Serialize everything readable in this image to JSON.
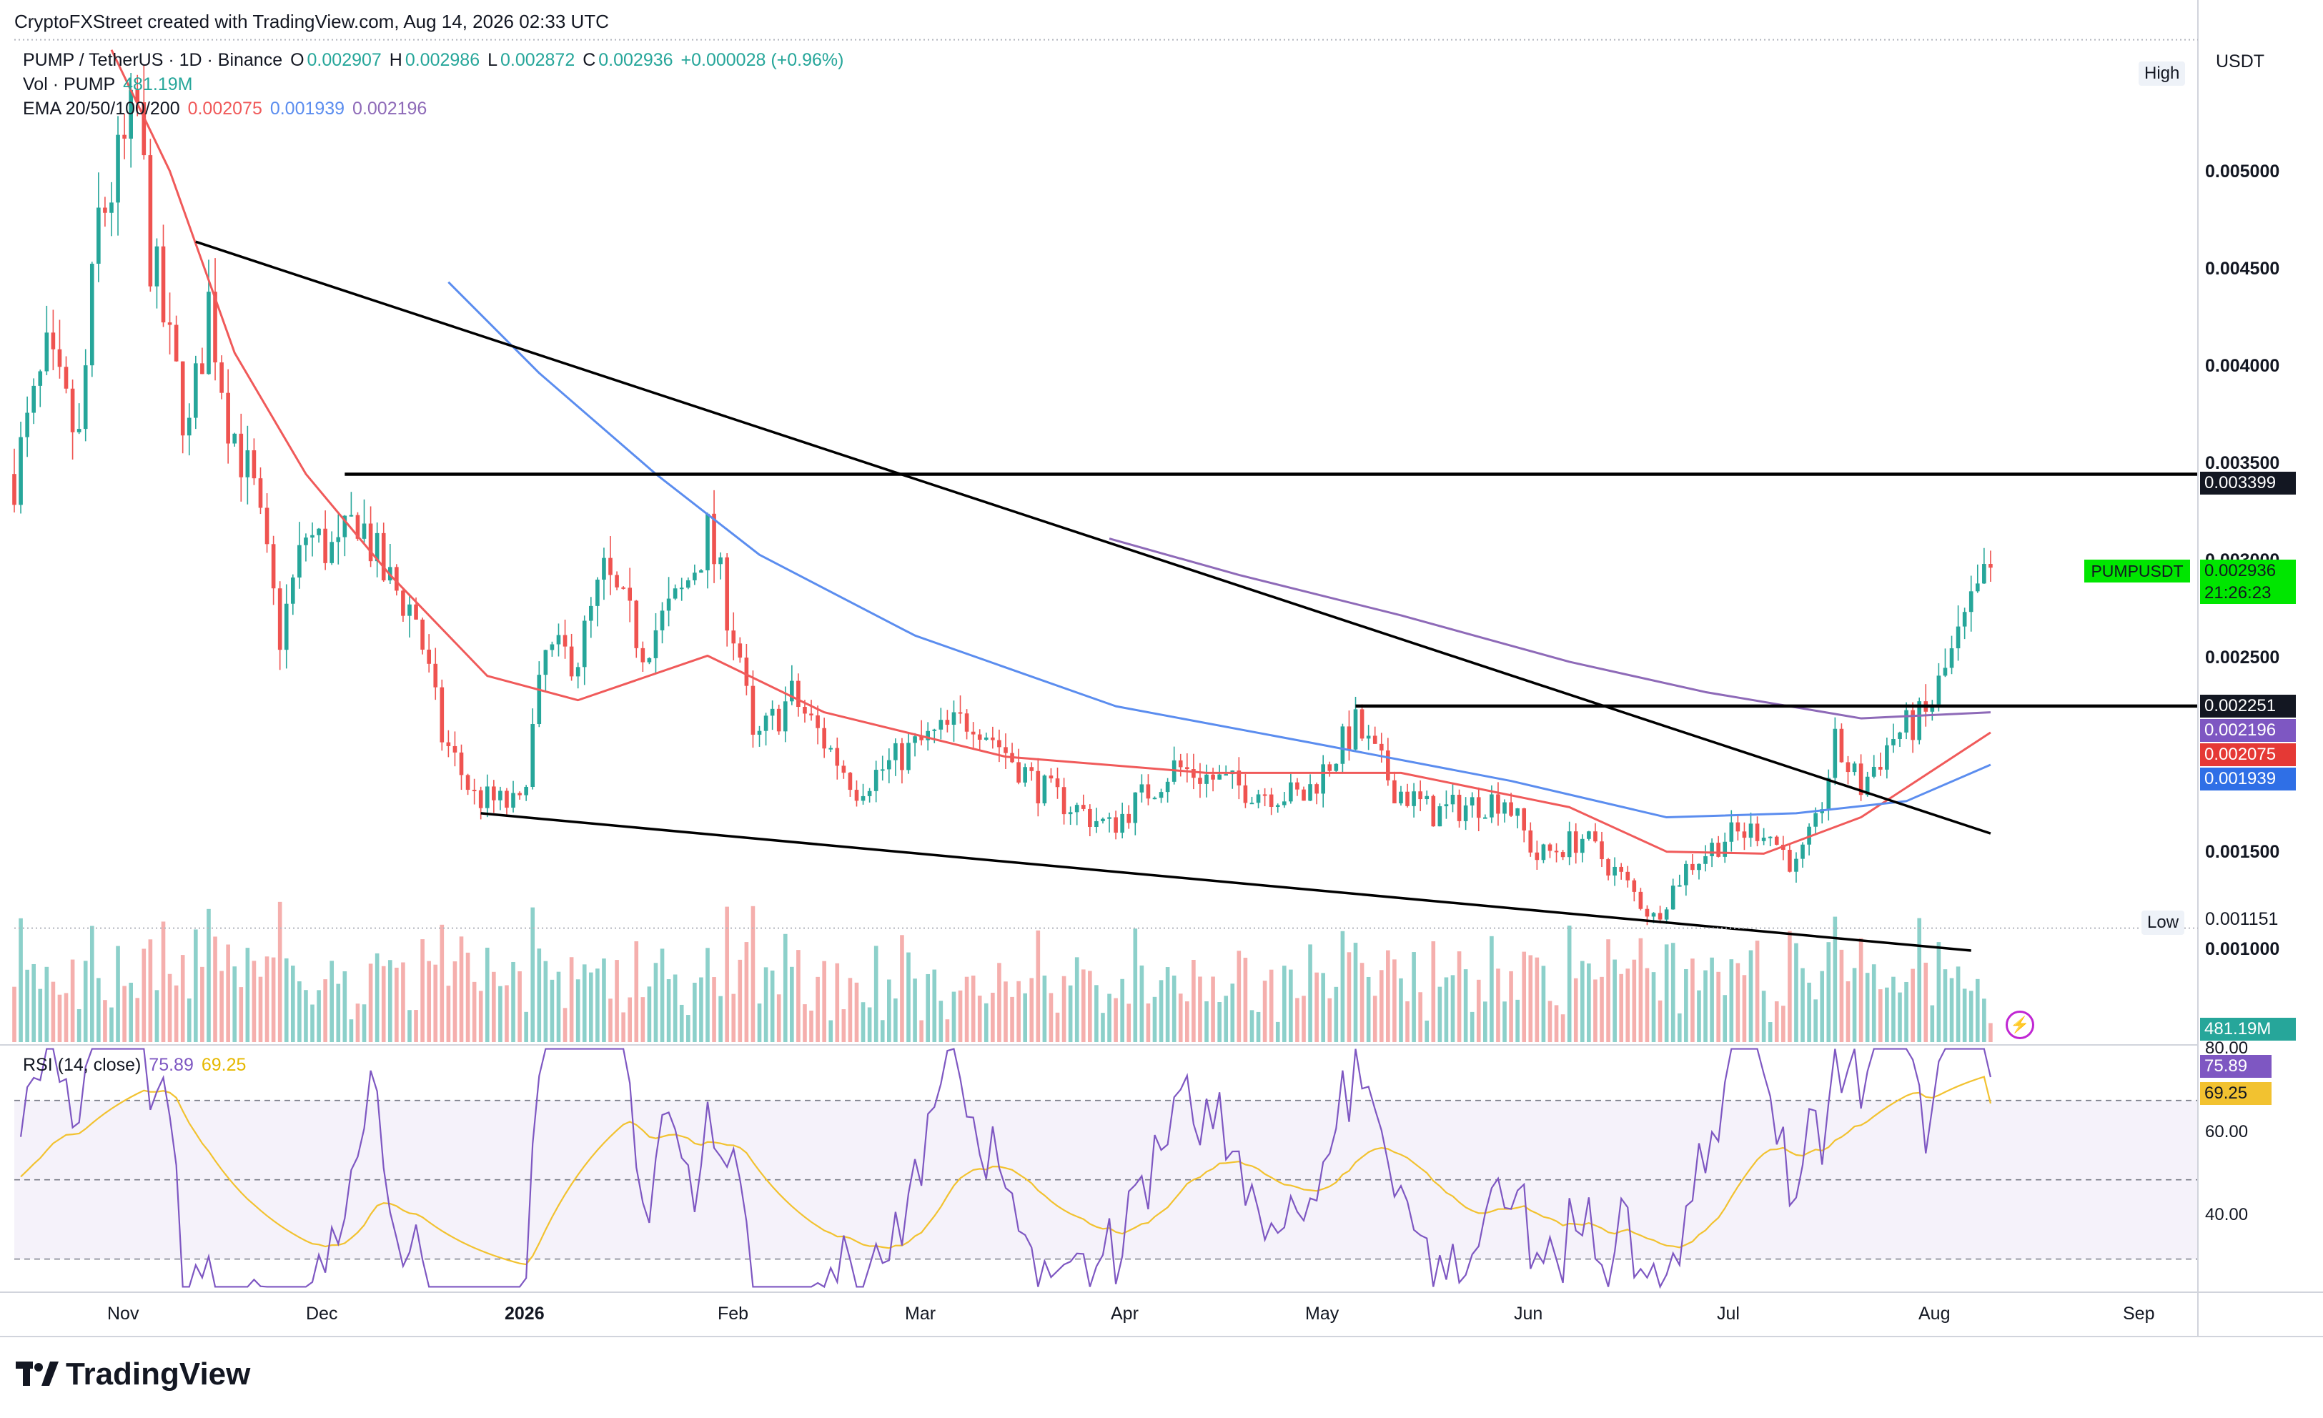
{
  "attribution": "CryptoFXStreet created with TradingView.com, Aug 14, 2026 02:33 UTC",
  "legend": {
    "symbol": "PUMP / TetherUS · 1D · Binance",
    "o_label": "O",
    "o": "0.002907",
    "h_label": "H",
    "h": "0.002986",
    "l_label": "L",
    "l": "0.002872",
    "c_label": "C",
    "c": "0.002936",
    "change": "+0.000028 (+0.96%)",
    "vol_label": "Vol · PUMP",
    "vol_value": "481.19M",
    "ema_label": "EMA 20/50/100/200",
    "ema20": "0.002075",
    "ema50": "0.001939",
    "ema100": "0.002196"
  },
  "currency": "USDT",
  "high_label": "High",
  "low_label": "Low",
  "price_axis": [
    "0.005000",
    "0.004500",
    "0.004000",
    "0.003500",
    "0.003000",
    "0.002500",
    "0.001500",
    "0.001000"
  ],
  "price_tags": {
    "resistance": "0.003399",
    "symbol": "PUMPUSDT",
    "last": "0.002936",
    "countdown": "21:26:23",
    "support": "0.002251",
    "ema100": "0.002196",
    "ema20": "0.002075",
    "ema50": "0.001939",
    "low": "0.001151",
    "volume": "481.19M"
  },
  "rsi": {
    "label": "RSI (14, close)",
    "value": "75.89",
    "ma": "69.25",
    "axis": [
      "80.00",
      "60.00",
      "40.00"
    ]
  },
  "time_axis": [
    "Nov",
    "Dec",
    "2026",
    "Feb",
    "Mar",
    "Apr",
    "May",
    "Jun",
    "Jul",
    "Aug",
    "Sep"
  ],
  "brand": "TradingView",
  "colors": {
    "up": "#26a69a",
    "down": "#ef5350",
    "ema20": "#f05a5a",
    "ema50": "#5b8def",
    "ema100": "#8e6ab8",
    "rsi": "#7e57c2",
    "rsi_ma": "#f2c230",
    "last": "#00e600"
  },
  "chart_data": {
    "type": "candlestick",
    "title": "PUMP / TetherUS · 1D · Binance",
    "x_range": [
      "2025-10-13",
      "2026-09-15"
    ],
    "y_range": [
      0.00058,
      0.00557
    ],
    "candle_anchors": [
      [
        "2025-10-13",
        0.0034
      ],
      [
        "2025-10-18",
        0.00395
      ],
      [
        "2025-10-23",
        0.00355
      ],
      [
        "2025-10-26",
        0.00465
      ],
      [
        "2025-10-29",
        0.0049
      ],
      [
        "2025-11-01",
        0.0052
      ],
      [
        "2025-11-03",
        0.0045
      ],
      [
        "2025-11-06",
        0.004
      ],
      [
        "2025-11-09",
        0.0036
      ],
      [
        "2025-11-12",
        0.00425
      ],
      [
        "2025-11-15",
        0.0037
      ],
      [
        "2025-11-19",
        0.0033
      ],
      [
        "2025-11-23",
        0.0026
      ],
      [
        "2025-11-27",
        0.0031
      ],
      [
        "2025-12-02",
        0.003
      ],
      [
        "2025-12-05",
        0.0032
      ],
      [
        "2025-12-09",
        0.0029
      ],
      [
        "2025-12-14",
        0.0027
      ],
      [
        "2025-12-18",
        0.0021
      ],
      [
        "2025-12-23",
        0.0018
      ],
      [
        "2025-12-30",
        0.00175
      ],
      [
        "2026-01-03",
        0.0025
      ],
      [
        "2026-01-08",
        0.0025
      ],
      [
        "2026-01-12",
        0.0029
      ],
      [
        "2026-01-18",
        0.00255
      ],
      [
        "2026-01-24",
        0.0028
      ],
      [
        "2026-01-28",
        0.0031
      ],
      [
        "2026-02-02",
        0.0025
      ],
      [
        "2026-02-04",
        0.00205
      ],
      [
        "2026-02-10",
        0.0023
      ],
      [
        "2026-02-20",
        0.00185
      ],
      [
        "2026-03-01",
        0.00205
      ],
      [
        "2026-03-10",
        0.0022
      ],
      [
        "2026-03-20",
        0.00185
      ],
      [
        "2026-03-31",
        0.00165
      ],
      [
        "2026-04-10",
        0.00195
      ],
      [
        "2026-04-20",
        0.00185
      ],
      [
        "2026-04-30",
        0.0018
      ],
      [
        "2026-05-08",
        0.00215
      ],
      [
        "2026-05-14",
        0.00185
      ],
      [
        "2026-05-20",
        0.00172
      ],
      [
        "2026-05-31",
        0.0018
      ],
      [
        "2026-06-05",
        0.0015
      ],
      [
        "2026-06-12",
        0.0016
      ],
      [
        "2026-06-18",
        0.0014
      ],
      [
        "2026-06-23",
        0.0012
      ],
      [
        "2026-06-28",
        0.00145
      ],
      [
        "2026-07-04",
        0.0016
      ],
      [
        "2026-07-10",
        0.00165
      ],
      [
        "2026-07-15",
        0.00145
      ],
      [
        "2026-07-18",
        0.00165
      ],
      [
        "2026-07-21",
        0.00205
      ],
      [
        "2026-07-25",
        0.00185
      ],
      [
        "2026-07-30",
        0.0021
      ],
      [
        "2026-08-04",
        0.0022
      ],
      [
        "2026-08-08",
        0.0025
      ],
      [
        "2026-08-14",
        0.00294
      ]
    ],
    "last_close": 0.002936,
    "high": 0.00555,
    "low": 0.001151,
    "horizontal_levels": [
      0.003399,
      0.002251
    ],
    "trendlines": [
      {
        "from": [
          "2025-11-10",
          0.00455
        ],
        "to": [
          "2026-08-14",
          0.00162
        ]
      },
      {
        "from": [
          "2025-12-24",
          0.00172
        ],
        "to": [
          "2026-08-11",
          0.00104
        ]
      }
    ],
    "ema": [
      {
        "name": "EMA 20",
        "color": "#f05a5a",
        "points": [
          [
            "2025-10-28",
            0.0055
          ],
          [
            "2025-11-06",
            0.0049
          ],
          [
            "2025-11-16",
            0.004
          ],
          [
            "2025-11-27",
            0.0034
          ],
          [
            "2025-12-10",
            0.0029
          ],
          [
            "2025-12-25",
            0.0024
          ],
          [
            "2026-01-08",
            0.00228
          ],
          [
            "2026-01-28",
            0.0025
          ],
          [
            "2026-02-15",
            0.00222
          ],
          [
            "2026-03-15",
            0.002
          ],
          [
            "2026-04-15",
            0.00192
          ],
          [
            "2026-05-15",
            0.00192
          ],
          [
            "2026-06-10",
            0.00175
          ],
          [
            "2026-06-25",
            0.00153
          ],
          [
            "2026-07-10",
            0.00152
          ],
          [
            "2026-07-25",
            0.0017
          ],
          [
            "2026-08-14",
            0.00212
          ]
        ]
      },
      {
        "name": "EMA 50",
        "color": "#5b8def",
        "points": [
          [
            "2025-12-19",
            0.00435
          ],
          [
            "2026-01-02",
            0.0039
          ],
          [
            "2026-01-20",
            0.0034
          ],
          [
            "2026-02-05",
            0.003
          ],
          [
            "2026-03-01",
            0.0026
          ],
          [
            "2026-04-01",
            0.00225
          ],
          [
            "2026-05-01",
            0.00207
          ],
          [
            "2026-06-01",
            0.00188
          ],
          [
            "2026-06-25",
            0.0017
          ],
          [
            "2026-07-15",
            0.00172
          ],
          [
            "2026-08-01",
            0.00178
          ],
          [
            "2026-08-14",
            0.00196
          ]
        ]
      },
      {
        "name": "EMA 100",
        "color": "#8e6ab8",
        "points": [
          [
            "2026-03-31",
            0.00308
          ],
          [
            "2026-04-20",
            0.0029
          ],
          [
            "2026-05-15",
            0.0027
          ],
          [
            "2026-06-10",
            0.00247
          ],
          [
            "2026-07-01",
            0.00232
          ],
          [
            "2026-07-25",
            0.00219
          ],
          [
            "2026-08-14",
            0.00222
          ]
        ]
      }
    ],
    "rsi_range": [
      22,
      84
    ],
    "rsi_levels": [
      70,
      50,
      30
    ]
  }
}
